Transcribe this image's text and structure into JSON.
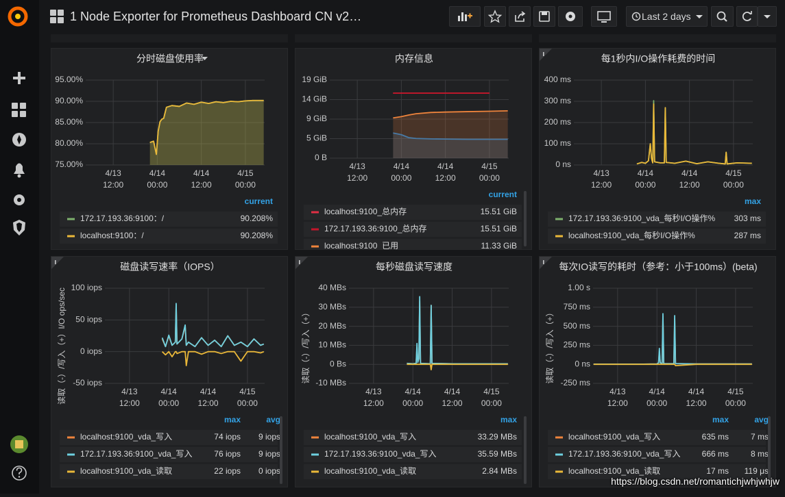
{
  "header": {
    "title": "1 Node Exporter for Prometheus Dashboard CN v2…",
    "time_range": "Last 2 days"
  },
  "watermark": "https://blog.csdn.net/romantichjwhjwhjw",
  "chart_data": [
    {
      "type": "line",
      "title": "分时磁盘使用率",
      "grid": true,
      "xlim": [
        "4/13 04:30",
        "4/15 05:15"
      ],
      "xticks": [
        "4/13 12:00",
        "4/14 00:00",
        "4/14 12:00",
        "4/15 00:00"
      ],
      "ylim": [
        75,
        95
      ],
      "yticks": [
        {
          "value": 75,
          "label": "75.00%"
        },
        {
          "value": 80,
          "label": "80.00%"
        },
        {
          "value": 85,
          "label": "85.00%"
        },
        {
          "value": 90,
          "label": "90.00%"
        },
        {
          "value": 95,
          "label": "95.00%"
        }
      ],
      "x": [
        "4/13 22:00",
        "4/13 23:00",
        "4/13 23:45",
        "4/14 00:15",
        "4/14 00:45",
        "4/14 01:15",
        "4/14 01:45",
        "4/14 02:30",
        "4/14 04:00",
        "4/14 06:00",
        "4/14 08:00",
        "4/14 10:00",
        "4/14 12:00",
        "4/14 14:00",
        "4/14 16:00",
        "4/14 18:00",
        "4/14 20:00",
        "4/14 22:00",
        "4/15 00:00",
        "4/15 02:00",
        "4/15 05:00"
      ],
      "legend_columns": [
        "current"
      ],
      "series": [
        {
          "name": "172.17.193.36:9100：/",
          "color": "#7eb26d",
          "fill": true,
          "values": [
            80.3,
            80.6,
            77.5,
            83,
            85.2,
            85.8,
            86,
            88.6,
            89,
            88.8,
            89.6,
            89.3,
            89.8,
            89.5,
            89.9,
            89.7,
            90,
            89.9,
            90.1,
            90.2,
            90.2
          ],
          "stats": [
            {
              "value": 90.208,
              "label": "90.208%"
            }
          ]
        },
        {
          "name": "localhost:9100：/",
          "color": "#eab839",
          "fill": true,
          "values": [
            80.3,
            80.6,
            77.5,
            83,
            85.2,
            85.8,
            86,
            88.6,
            89,
            88.8,
            89.6,
            89.3,
            89.8,
            89.5,
            89.9,
            89.7,
            90,
            89.9,
            90.1,
            90.2,
            90.2
          ],
          "stats": [
            {
              "value": 90.208,
              "label": "90.208%"
            }
          ]
        }
      ]
    },
    {
      "type": "line",
      "title": "内存信息",
      "grid": true,
      "xlim": [
        "4/13 04:30",
        "4/15 05:15"
      ],
      "xticks": [
        "4/13 12:00",
        "4/14 00:00",
        "4/14 12:00",
        "4/15 00:00"
      ],
      "ylim": [
        0,
        18.63
      ],
      "yticks": [
        {
          "value": 0,
          "label": "0 B"
        },
        {
          "value": 4.66,
          "label": "5 GiB"
        },
        {
          "value": 9.31,
          "label": "9 GiB"
        },
        {
          "value": 13.97,
          "label": "14 GiB"
        },
        {
          "value": 18.63,
          "label": "19 GiB"
        }
      ],
      "x": [
        "4/13 21:45",
        "4/14 00:00",
        "4/14 02:00",
        "4/14 04:00",
        "4/14 08:00",
        "4/14 12:00",
        "4/14 18:00",
        "4/15 00:00",
        "4/15 05:00"
      ],
      "legend_columns": [
        "current"
      ],
      "series": [
        {
          "color": "#1f78c1",
          "fill": true,
          "values": [
            6.0,
            5.6,
            4.9,
            4.7,
            4.6,
            4.55,
            4.5,
            4.5,
            4.5
          ]
        },
        {
          "name": "localhost:9100_总内存",
          "color": "#e02f44",
          "values": [
            15.51,
            15.51,
            15.51,
            15.51,
            15.51,
            15.51,
            15.51,
            15.51,
            null
          ],
          "stats": [
            {
              "value": 15.51,
              "label": "15.51 GiB"
            }
          ]
        },
        {
          "name": "172.17.193.36:9100_总内存",
          "color": "#c4162a",
          "values": [
            15.51,
            15.51,
            15.51,
            15.51,
            15.51,
            15.51,
            15.51,
            15.51,
            null
          ],
          "stats": [
            {
              "value": 15.51,
              "label": "15.51 GiB"
            }
          ]
        },
        {
          "name": "localhost:9100_已用",
          "color": "#ef843c",
          "fill": true,
          "values": [
            9.6,
            9.9,
            10.3,
            10.6,
            10.9,
            11.0,
            11.1,
            11.2,
            11.3
          ],
          "stats": [
            {
              "value": 11.33,
              "label": "11.33 GiB"
            }
          ]
        }
      ]
    },
    {
      "type": "line",
      "title": "每1秒内I/O操作耗费的时间",
      "grid": true,
      "xlim": [
        "4/13 04:30",
        "4/15 05:15"
      ],
      "xticks": [
        "4/13 12:00",
        "4/14 00:00",
        "4/14 12:00",
        "4/15 00:00"
      ],
      "ylim": [
        0,
        400
      ],
      "yticks": [
        {
          "value": 0,
          "label": "0 ns"
        },
        {
          "value": 100,
          "label": "100 ms"
        },
        {
          "value": 200,
          "label": "200 ms"
        },
        {
          "value": 300,
          "label": "300 ms"
        },
        {
          "value": 400,
          "label": "400 ms"
        }
      ],
      "x": [
        "4/13 21:40",
        "4/13 23:00",
        "4/14 00:00",
        "4/14 00:50",
        "4/14 01:20",
        "4/14 01:40",
        "4/14 02:00",
        "4/14 02:15",
        "4/14 02:30",
        "4/14 04:00",
        "4/14 05:10",
        "4/14 05:25",
        "4/14 05:40",
        "4/14 08:00",
        "4/14 11:00",
        "4/14 14:00",
        "4/14 17:00",
        "4/14 20:00",
        "4/14 21:45",
        "4/14 22:00",
        "4/14 22:15",
        "4/15 01:00",
        "4/15 05:00"
      ],
      "legend_columns": [
        "max"
      ],
      "series": [
        {
          "name": "172.17.193.36:9100_vda_每秒I/O操作%",
          "color": "#7eb26d",
          "values": [
            5,
            12,
            8,
            20,
            100,
            30,
            10,
            303,
            15,
            10,
            10,
            270,
            12,
            8,
            18,
            6,
            15,
            8,
            5,
            60,
            5,
            10,
            8
          ],
          "stats": [
            {
              "value": 303,
              "label": "303 ms"
            }
          ]
        },
        {
          "name": "localhost:9100_vda_每秒I/O操作%",
          "color": "#eab839",
          "values": [
            5,
            12,
            8,
            20,
            100,
            30,
            10,
            287,
            15,
            10,
            10,
            270,
            12,
            8,
            18,
            6,
            15,
            8,
            5,
            60,
            5,
            10,
            8
          ],
          "stats": [
            {
              "value": 287,
              "label": "287 ms"
            }
          ]
        }
      ]
    },
    {
      "type": "line",
      "title": "磁盘读写速率（IOPS）",
      "ylabel": "读取（-）/写入（+）I/O ops/sec",
      "grid": true,
      "xlim": [
        "4/13 04:30",
        "4/15 05:15"
      ],
      "xticks": [
        "4/13 12:00",
        "4/14 00:00",
        "4/14 12:00",
        "4/15 00:00"
      ],
      "ylim": [
        -50,
        100
      ],
      "yticks": [
        {
          "value": -50,
          "label": "-50 iops"
        },
        {
          "value": 0,
          "label": "0 iops"
        },
        {
          "value": 50,
          "label": "50 iops"
        },
        {
          "value": 100,
          "label": "100 iops"
        }
      ],
      "x": [
        "4/13 22:00",
        "4/13 23:00",
        "4/14 00:00",
        "4/14 01:00",
        "4/14 02:00",
        "4/14 02:15",
        "4/14 02:30",
        "4/14 04:00",
        "4/14 05:00",
        "4/14 05:20",
        "4/14 06:00",
        "4/14 08:00",
        "4/14 10:00",
        "4/14 12:00",
        "4/14 14:00",
        "4/14 16:00",
        "4/14 18:00",
        "4/14 20:00",
        "4/14 22:00",
        "4/15 00:00",
        "4/15 02:00",
        "4/15 04:00",
        "4/15 05:00"
      ],
      "legend_columns": [
        "max",
        "avg"
      ],
      "series": [
        {
          "name": "localhost:9100_vda_写入",
          "color": "#ef843c",
          "values": [
            20,
            8,
            25,
            10,
            15,
            74,
            12,
            20,
            40,
            10,
            15,
            8,
            22,
            10,
            18,
            8,
            25,
            10,
            15,
            8,
            20,
            10,
            12
          ],
          "stats": [
            {
              "value": 74,
              "label": "74 iops"
            },
            {
              "value": 9,
              "label": "9 iops"
            }
          ]
        },
        {
          "name": "172.17.193.36:9100_vda_写入",
          "color": "#6ed0e0",
          "values": [
            22,
            8,
            26,
            10,
            15,
            76,
            12,
            20,
            42,
            10,
            15,
            8,
            22,
            10,
            18,
            8,
            25,
            10,
            15,
            8,
            20,
            10,
            12
          ],
          "stats": [
            {
              "value": 76,
              "label": "76 iops"
            },
            {
              "value": 9,
              "label": "9 iops"
            }
          ]
        },
        {
          "name": "localhost:9100_vda_读取",
          "color": "#eab839",
          "values": [
            0,
            -5,
            0,
            -8,
            0,
            0,
            -3,
            0,
            0,
            -22,
            0,
            0,
            -4,
            0,
            0,
            -3,
            0,
            0,
            -15,
            0,
            0,
            -2,
            0
          ],
          "stats": [
            {
              "value": 22,
              "label": "22 iops"
            },
            {
              "value": 0,
              "label": "0 iops"
            }
          ]
        }
      ]
    },
    {
      "type": "line",
      "title": "每秒磁盘读写速度",
      "ylabel": "读取（-）/写入（+）",
      "grid": true,
      "xlim": [
        "4/13 04:30",
        "4/15 05:15"
      ],
      "xticks": [
        "4/13 12:00",
        "4/14 00:00",
        "4/14 12:00",
        "4/15 00:00"
      ],
      "ylim": [
        -10,
        40
      ],
      "yticks": [
        {
          "value": -10,
          "label": "-10 MBs"
        },
        {
          "value": 0,
          "label": "0 Bs"
        },
        {
          "value": 10,
          "label": "10 MBs"
        },
        {
          "value": 20,
          "label": "20 MBs"
        },
        {
          "value": 30,
          "label": "30 MBs"
        },
        {
          "value": 40,
          "label": "40 MBs"
        }
      ],
      "x": [
        "4/13 22:10",
        "4/14 00:00",
        "4/14 01:00",
        "4/14 01:15",
        "4/14 01:30",
        "4/14 01:50",
        "4/14 02:05",
        "4/14 02:20",
        "4/14 05:20",
        "4/14 05:35",
        "4/14 05:50",
        "4/14 12:00",
        "4/15 05:00"
      ],
      "legend_columns": [
        "max"
      ],
      "series": [
        {
          "name": "localhost:9100_vda_写入",
          "color": "#ef843c",
          "values": [
            0.5,
            0.3,
            0.5,
            9,
            1,
            3,
            33.29,
            0.5,
            0.3,
            31,
            0.5,
            0.3,
            0.3
          ],
          "stats": [
            {
              "value": 33.29,
              "label": "33.29 MBs"
            }
          ]
        },
        {
          "name": "172.17.193.36:9100_vda_写入",
          "color": "#6ed0e0",
          "values": [
            0.5,
            0.3,
            0.5,
            11,
            1,
            3,
            35.59,
            0.5,
            0.3,
            31,
            0.5,
            0.3,
            0.3
          ],
          "stats": [
            {
              "value": 35.59,
              "label": "35.59 MBs"
            }
          ]
        },
        {
          "name": "localhost:9100_vda_读取",
          "color": "#eab839",
          "values": [
            0,
            0,
            0,
            0,
            0,
            0,
            0,
            0,
            0,
            -2.84,
            0,
            0,
            0
          ],
          "stats": [
            {
              "value": 2.84,
              "label": "2.84 MBs"
            }
          ]
        }
      ]
    },
    {
      "type": "line",
      "title": "每次IO读写的耗时（参考：小于100ms）(beta)",
      "ylabel": "读取（-）/写入（+）",
      "grid": true,
      "xlim": [
        "4/13 04:30",
        "4/15 05:15"
      ],
      "xticks": [
        "4/13 12:00",
        "4/14 00:00",
        "4/14 12:00",
        "4/15 00:00"
      ],
      "ylim": [
        -250,
        1000
      ],
      "yticks": [
        {
          "value": -250,
          "label": "-250 ms"
        },
        {
          "value": 0,
          "label": "0 ns"
        },
        {
          "value": 250,
          "label": "250 ms"
        },
        {
          "value": 500,
          "label": "500 ms"
        },
        {
          "value": 750,
          "label": "750 ms"
        },
        {
          "value": 1000,
          "label": "1.00 s"
        }
      ],
      "x": [
        "4/13 04:40",
        "4/13 12:00",
        "4/13 20:00",
        "4/14 00:00",
        "4/14 00:30",
        "4/14 00:45",
        "4/14 01:00",
        "4/14 01:35",
        "4/14 01:50",
        "4/14 02:05",
        "4/14 05:10",
        "4/14 05:25",
        "4/14 05:40",
        "4/14 12:00",
        "4/15 05:00"
      ],
      "legend_columns": [
        "max",
        "avg"
      ],
      "series": [
        {
          "name": "localhost:9100_vda_写入",
          "color": "#ef843c",
          "values": [
            3,
            3,
            3,
            5,
            20,
            170,
            20,
            10,
            635,
            10,
            8,
            600,
            10,
            5,
            5
          ],
          "stats": [
            {
              "value": 635,
              "label": "635 ms"
            },
            {
              "value": 7,
              "label": "7 ms"
            }
          ]
        },
        {
          "name": "172.17.193.36:9100_vda_写入",
          "color": "#6ed0e0",
          "values": [
            3,
            3,
            3,
            5,
            20,
            210,
            20,
            10,
            666,
            10,
            8,
            640,
            10,
            5,
            5
          ],
          "stats": [
            {
              "value": 666,
              "label": "666 ms"
            },
            {
              "value": 8,
              "label": "8 ms"
            }
          ]
        },
        {
          "name": "localhost:9100_vda_读取",
          "color": "#eab839",
          "values": [
            0,
            0,
            0,
            0,
            0,
            0,
            0,
            0,
            0,
            0,
            0,
            0,
            -17,
            0,
            0
          ],
          "stats": [
            {
              "value": 17,
              "label": "17 ms"
            },
            {
              "value": 0.119,
              "label": "119 μs"
            }
          ]
        }
      ]
    }
  ]
}
